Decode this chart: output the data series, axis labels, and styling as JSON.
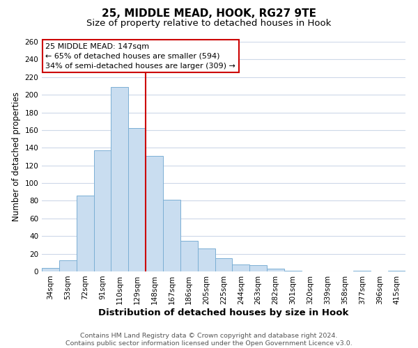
{
  "title": "25, MIDDLE MEAD, HOOK, RG27 9TE",
  "subtitle": "Size of property relative to detached houses in Hook",
  "xlabel": "Distribution of detached houses by size in Hook",
  "ylabel": "Number of detached properties",
  "bar_labels": [
    "34sqm",
    "53sqm",
    "72sqm",
    "91sqm",
    "110sqm",
    "129sqm",
    "148sqm",
    "167sqm",
    "186sqm",
    "205sqm",
    "225sqm",
    "244sqm",
    "263sqm",
    "282sqm",
    "301sqm",
    "320sqm",
    "339sqm",
    "358sqm",
    "377sqm",
    "396sqm",
    "415sqm"
  ],
  "bar_values": [
    4,
    13,
    86,
    137,
    209,
    162,
    131,
    81,
    35,
    26,
    15,
    8,
    7,
    3,
    1,
    0,
    0,
    0,
    1,
    0,
    1
  ],
  "bar_color": "#c9ddf0",
  "bar_edge_color": "#7bafd4",
  "ylim": [
    0,
    260
  ],
  "yticks": [
    0,
    20,
    40,
    60,
    80,
    100,
    120,
    140,
    160,
    180,
    200,
    220,
    240,
    260
  ],
  "vline_idx": 6,
  "vline_color": "#cc0000",
  "annotation_title": "25 MIDDLE MEAD: 147sqm",
  "annotation_line1": "← 65% of detached houses are smaller (594)",
  "annotation_line2": "34% of semi-detached houses are larger (309) →",
  "annotation_box_color": "#ffffff",
  "annotation_box_edge": "#cc0000",
  "footer_line1": "Contains HM Land Registry data © Crown copyright and database right 2024.",
  "footer_line2": "Contains public sector information licensed under the Open Government Licence v3.0.",
  "background_color": "#ffffff",
  "grid_color": "#cdd8e8",
  "title_fontsize": 11,
  "subtitle_fontsize": 9.5,
  "xlabel_fontsize": 9.5,
  "ylabel_fontsize": 8.5,
  "tick_fontsize": 7.5,
  "ann_fontsize": 8.0,
  "footer_fontsize": 6.8
}
